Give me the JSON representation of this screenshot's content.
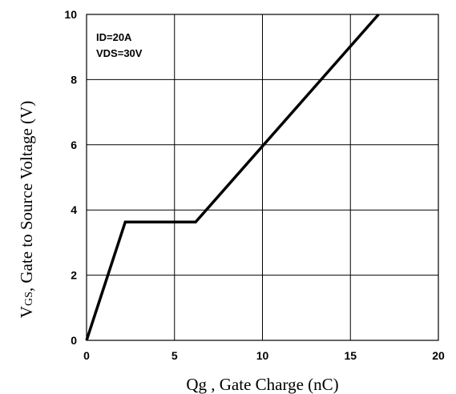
{
  "chart_data": {
    "type": "line",
    "xlabel": "Qg , Gate Charge (nC)",
    "ylabel_main": "V",
    "ylabel_sub": "GS",
    "ylabel_rest": ", Gate to Source Voltage (V)",
    "xlim": [
      0,
      20
    ],
    "ylim": [
      0,
      10
    ],
    "xticks": [
      0,
      5,
      10,
      15,
      20
    ],
    "yticks": [
      0,
      2,
      4,
      6,
      8,
      10
    ],
    "xtick_labels": [
      "0",
      "5",
      "10",
      "15",
      "20"
    ],
    "ytick_labels": [
      "0",
      "2",
      "4",
      "6",
      "8",
      "10"
    ],
    "grid": true,
    "annotations": [
      "ID=20A",
      "VDS=30V"
    ],
    "series": [
      {
        "x": [
          0,
          2.2,
          6.2,
          16.6
        ],
        "y": [
          0,
          3.63,
          3.63,
          10
        ]
      }
    ]
  }
}
